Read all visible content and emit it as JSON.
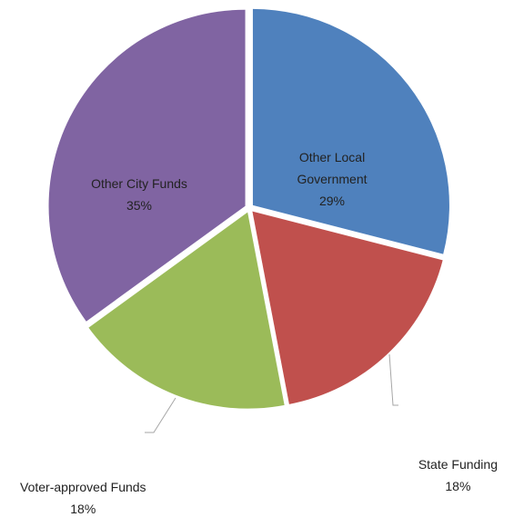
{
  "chart_data": {
    "type": "pie",
    "title": "",
    "slices": [
      {
        "label_lines": [
          "Other Local",
          "Government"
        ],
        "value_label": "29%",
        "value": 29,
        "color": "#4f81bd"
      },
      {
        "label_lines": [
          "State Funding"
        ],
        "value_label": "18%",
        "value": 18,
        "color": "#c0504d"
      },
      {
        "label_lines": [
          "Voter-approved Funds"
        ],
        "value_label": "18%",
        "value": 18,
        "color": "#9bbb59"
      },
      {
        "label_lines": [
          "Other City Funds"
        ],
        "value_label": "35%",
        "value": 35,
        "color": "#8064a2"
      }
    ],
    "start_angle_deg": 0,
    "direction": "clockwise",
    "exploded": true,
    "legend": "none"
  }
}
